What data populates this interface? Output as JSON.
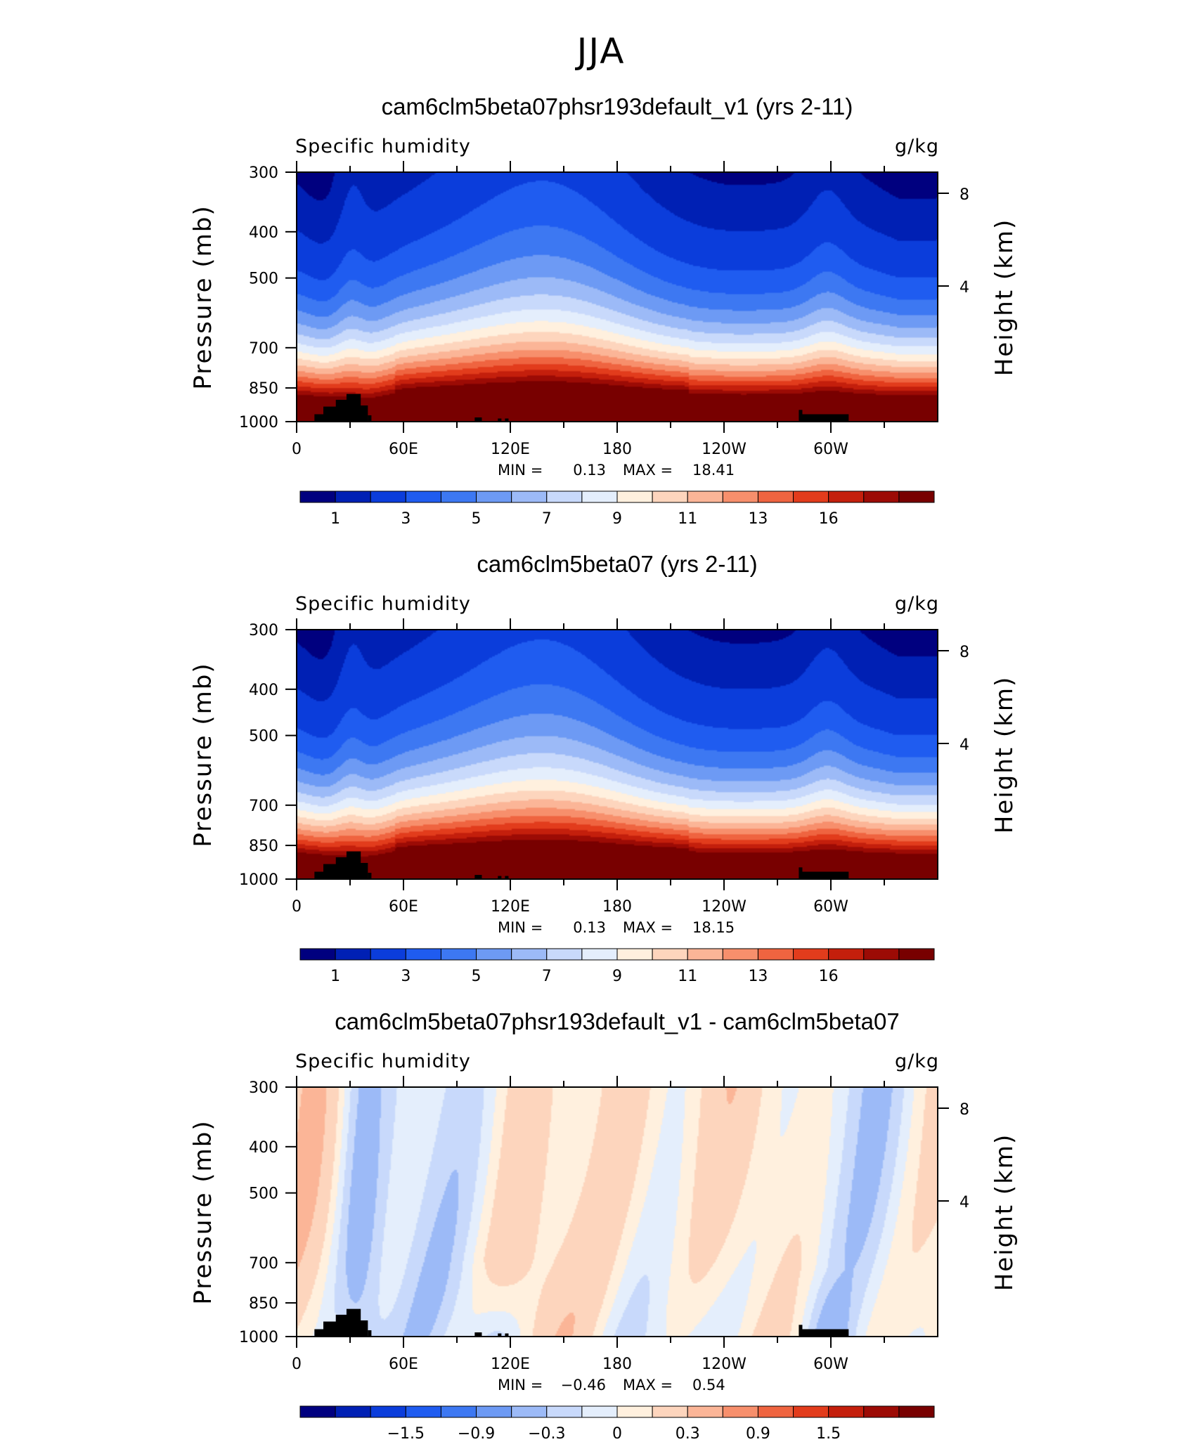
{
  "page_title": "JJA",
  "chart_data": [
    {
      "type": "heatmap",
      "title": "cam6clm5beta07phsr193default_v1 (yrs 2-11)",
      "subtitle_left": "Specific humidity",
      "subtitle_right": "g/kg",
      "ylabel": "Pressure (mb)",
      "ylabel_right": "Height (km)",
      "x_ticks": [
        "0",
        "60E",
        "120E",
        "180",
        "120W",
        "60W"
      ],
      "y_ticks": [
        "300",
        "400",
        "500",
        "700",
        "850",
        "1000"
      ],
      "y_ticks_right": [
        "8",
        "4"
      ],
      "min_label": "MIN =",
      "min": "0.13",
      "max_label": "MAX =",
      "max": "18.41",
      "colorbar_labels": [
        "1",
        "3",
        "5",
        "7",
        "9",
        "11",
        "13",
        "16"
      ],
      "colors": [
        "#00007f",
        "#0020b4",
        "#0b3ddb",
        "#1f5cf0",
        "#3d78f2",
        "#6d9af4",
        "#9cbaf7",
        "#c8d9fb",
        "#e4eefc",
        "#fff0de",
        "#fdd5bd",
        "#fbb597",
        "#f78f6c",
        "#ef6440",
        "#e23c1c",
        "#c41f0c",
        "#9c0b05",
        "#780000"
      ]
    },
    {
      "type": "heatmap",
      "title": "cam6clm5beta07 (yrs 2-11)",
      "subtitle_left": "Specific humidity",
      "subtitle_right": "g/kg",
      "ylabel": "Pressure (mb)",
      "ylabel_right": "Height (km)",
      "x_ticks": [
        "0",
        "60E",
        "120E",
        "180",
        "120W",
        "60W"
      ],
      "y_ticks": [
        "300",
        "400",
        "500",
        "700",
        "850",
        "1000"
      ],
      "y_ticks_right": [
        "8",
        "4"
      ],
      "min_label": "MIN =",
      "min": "0.13",
      "max_label": "MAX =",
      "max": "18.15",
      "colorbar_labels": [
        "1",
        "3",
        "5",
        "7",
        "9",
        "11",
        "13",
        "16"
      ],
      "colors": [
        "#00007f",
        "#0020b4",
        "#0b3ddb",
        "#1f5cf0",
        "#3d78f2",
        "#6d9af4",
        "#9cbaf7",
        "#c8d9fb",
        "#e4eefc",
        "#fff0de",
        "#fdd5bd",
        "#fbb597",
        "#f78f6c",
        "#ef6440",
        "#e23c1c",
        "#c41f0c",
        "#9c0b05",
        "#780000"
      ]
    },
    {
      "type": "heatmap",
      "title": "cam6clm5beta07phsr193default_v1 - cam6clm5beta07",
      "subtitle_left": "Specific humidity",
      "subtitle_right": "g/kg",
      "ylabel": "Pressure (mb)",
      "ylabel_right": "Height (km)",
      "x_ticks": [
        "0",
        "60E",
        "120E",
        "180",
        "120W",
        "60W"
      ],
      "y_ticks": [
        "300",
        "400",
        "500",
        "700",
        "850",
        "1000"
      ],
      "y_ticks_right": [
        "8",
        "4"
      ],
      "min_label": "MIN =",
      "min": "−0.46",
      "max_label": "MAX =",
      "max": "0.54",
      "colorbar_labels": [
        "−1.5",
        "−0.9",
        "−0.3",
        "0",
        "0.3",
        "0.9",
        "1.5"
      ],
      "colors": [
        "#00007f",
        "#0020b4",
        "#0b3ddb",
        "#1f5cf0",
        "#3d78f2",
        "#6d9af4",
        "#9cbaf7",
        "#c8d9fb",
        "#e4eefc",
        "#fff0de",
        "#fdd5bd",
        "#fbb597",
        "#f78f6c",
        "#ef6440",
        "#e23c1c",
        "#c41f0c",
        "#9c0b05",
        "#780000"
      ]
    }
  ]
}
